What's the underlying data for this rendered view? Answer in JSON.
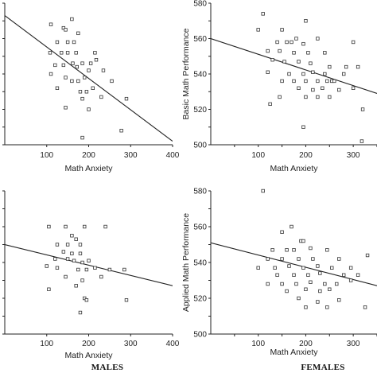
{
  "group_labels": {
    "males": "MALES",
    "females": "FEMALES"
  },
  "chart_data": [
    {
      "type": "scatter",
      "position": "top-left",
      "xlabel": "Math Anxiety",
      "ylabel": "",
      "xlim": [
        0,
        400
      ],
      "ylim": [
        500,
        580
      ],
      "xticks": [
        100,
        200,
        300,
        400
      ],
      "yticks": [],
      "fit_line": {
        "x": [
          0,
          400
        ],
        "y": [
          573,
          502
        ]
      },
      "points": [
        {
          "x": 110,
          "y": 568
        },
        {
          "x": 140,
          "y": 566
        },
        {
          "x": 145,
          "y": 565
        },
        {
          "x": 160,
          "y": 571
        },
        {
          "x": 175,
          "y": 563
        },
        {
          "x": 125,
          "y": 558
        },
        {
          "x": 150,
          "y": 558
        },
        {
          "x": 165,
          "y": 558
        },
        {
          "x": 108,
          "y": 552
        },
        {
          "x": 135,
          "y": 552
        },
        {
          "x": 150,
          "y": 552
        },
        {
          "x": 170,
          "y": 552
        },
        {
          "x": 120,
          "y": 545
        },
        {
          "x": 140,
          "y": 545
        },
        {
          "x": 162,
          "y": 546
        },
        {
          "x": 172,
          "y": 544
        },
        {
          "x": 185,
          "y": 546
        },
        {
          "x": 205,
          "y": 546
        },
        {
          "x": 215,
          "y": 552
        },
        {
          "x": 218,
          "y": 548
        },
        {
          "x": 110,
          "y": 540
        },
        {
          "x": 145,
          "y": 538
        },
        {
          "x": 160,
          "y": 536
        },
        {
          "x": 175,
          "y": 536
        },
        {
          "x": 190,
          "y": 538
        },
        {
          "x": 200,
          "y": 542
        },
        {
          "x": 235,
          "y": 542
        },
        {
          "x": 255,
          "y": 536
        },
        {
          "x": 125,
          "y": 532
        },
        {
          "x": 180,
          "y": 530
        },
        {
          "x": 195,
          "y": 530
        },
        {
          "x": 210,
          "y": 532
        },
        {
          "x": 185,
          "y": 526
        },
        {
          "x": 230,
          "y": 527
        },
        {
          "x": 145,
          "y": 521
        },
        {
          "x": 200,
          "y": 520
        },
        {
          "x": 290,
          "y": 526
        },
        {
          "x": 185,
          "y": 504
        },
        {
          "x": 278,
          "y": 508
        }
      ]
    },
    {
      "type": "scatter",
      "position": "top-right",
      "xlabel": "Math Anxiety",
      "ylabel": "Basic Math Performance",
      "xlim": [
        0,
        350
      ],
      "ylim": [
        500,
        580
      ],
      "xticks": [
        100,
        200,
        300
      ],
      "yticks": [
        500,
        520,
        540,
        560,
        580
      ],
      "fit_line": {
        "x": [
          0,
          350
        ],
        "y": [
          560,
          529
        ]
      },
      "points": [
        {
          "x": 110,
          "y": 574
        },
        {
          "x": 100,
          "y": 565
        },
        {
          "x": 150,
          "y": 565
        },
        {
          "x": 200,
          "y": 570
        },
        {
          "x": 180,
          "y": 560
        },
        {
          "x": 225,
          "y": 560
        },
        {
          "x": 140,
          "y": 558
        },
        {
          "x": 160,
          "y": 558
        },
        {
          "x": 170,
          "y": 558
        },
        {
          "x": 195,
          "y": 557
        },
        {
          "x": 300,
          "y": 558
        },
        {
          "x": 120,
          "y": 553
        },
        {
          "x": 145,
          "y": 553
        },
        {
          "x": 175,
          "y": 552
        },
        {
          "x": 205,
          "y": 552
        },
        {
          "x": 240,
          "y": 552
        },
        {
          "x": 130,
          "y": 548
        },
        {
          "x": 155,
          "y": 547
        },
        {
          "x": 185,
          "y": 547
        },
        {
          "x": 210,
          "y": 546
        },
        {
          "x": 250,
          "y": 544
        },
        {
          "x": 285,
          "y": 544
        },
        {
          "x": 310,
          "y": 544
        },
        {
          "x": 120,
          "y": 541
        },
        {
          "x": 165,
          "y": 540
        },
        {
          "x": 195,
          "y": 540
        },
        {
          "x": 215,
          "y": 541
        },
        {
          "x": 240,
          "y": 540
        },
        {
          "x": 280,
          "y": 540
        },
        {
          "x": 150,
          "y": 536
        },
        {
          "x": 175,
          "y": 536
        },
        {
          "x": 200,
          "y": 536
        },
        {
          "x": 225,
          "y": 536
        },
        {
          "x": 245,
          "y": 536
        },
        {
          "x": 255,
          "y": 536
        },
        {
          "x": 260,
          "y": 536
        },
        {
          "x": 185,
          "y": 532
        },
        {
          "x": 215,
          "y": 531
        },
        {
          "x": 235,
          "y": 532
        },
        {
          "x": 270,
          "y": 531
        },
        {
          "x": 300,
          "y": 532
        },
        {
          "x": 145,
          "y": 527
        },
        {
          "x": 200,
          "y": 527
        },
        {
          "x": 225,
          "y": 527
        },
        {
          "x": 250,
          "y": 527
        },
        {
          "x": 125,
          "y": 523
        },
        {
          "x": 195,
          "y": 510
        },
        {
          "x": 320,
          "y": 520
        },
        {
          "x": 318,
          "y": 502
        }
      ]
    },
    {
      "type": "scatter",
      "position": "bottom-left",
      "xlabel": "Math Anxiety",
      "ylabel": "",
      "xlim": [
        0,
        400
      ],
      "ylim": [
        500,
        580
      ],
      "xticks": [
        100,
        200,
        300,
        400
      ],
      "yticks": [],
      "fit_line": {
        "x": [
          0,
          400
        ],
        "y": [
          550,
          527
        ]
      },
      "points": [
        {
          "x": 105,
          "y": 560
        },
        {
          "x": 145,
          "y": 560
        },
        {
          "x": 190,
          "y": 560
        },
        {
          "x": 240,
          "y": 560
        },
        {
          "x": 160,
          "y": 555
        },
        {
          "x": 170,
          "y": 553
        },
        {
          "x": 125,
          "y": 550
        },
        {
          "x": 150,
          "y": 550
        },
        {
          "x": 180,
          "y": 550
        },
        {
          "x": 140,
          "y": 546
        },
        {
          "x": 160,
          "y": 545
        },
        {
          "x": 180,
          "y": 545
        },
        {
          "x": 120,
          "y": 542
        },
        {
          "x": 150,
          "y": 542
        },
        {
          "x": 165,
          "y": 541
        },
        {
          "x": 185,
          "y": 540
        },
        {
          "x": 200,
          "y": 541
        },
        {
          "x": 100,
          "y": 538
        },
        {
          "x": 125,
          "y": 537
        },
        {
          "x": 175,
          "y": 536
        },
        {
          "x": 195,
          "y": 536
        },
        {
          "x": 215,
          "y": 537
        },
        {
          "x": 250,
          "y": 536
        },
        {
          "x": 285,
          "y": 536
        },
        {
          "x": 145,
          "y": 532
        },
        {
          "x": 185,
          "y": 530
        },
        {
          "x": 230,
          "y": 532
        },
        {
          "x": 170,
          "y": 527
        },
        {
          "x": 105,
          "y": 525
        },
        {
          "x": 190,
          "y": 520
        },
        {
          "x": 195,
          "y": 519
        },
        {
          "x": 290,
          "y": 519
        },
        {
          "x": 180,
          "y": 512
        }
      ]
    },
    {
      "type": "scatter",
      "position": "bottom-right",
      "xlabel": "Math Anxiety",
      "ylabel": "Applied Math Performance",
      "xlim": [
        0,
        350
      ],
      "ylim": [
        500,
        580
      ],
      "xticks": [
        100,
        200,
        300
      ],
      "yticks": [
        500,
        520,
        540,
        560,
        580
      ],
      "fit_line": {
        "x": [
          0,
          350
        ],
        "y": [
          551,
          527
        ]
      },
      "points": [
        {
          "x": 110,
          "y": 580
        },
        {
          "x": 170,
          "y": 560
        },
        {
          "x": 150,
          "y": 557
        },
        {
          "x": 190,
          "y": 552
        },
        {
          "x": 195,
          "y": 552
        },
        {
          "x": 130,
          "y": 547
        },
        {
          "x": 160,
          "y": 547
        },
        {
          "x": 175,
          "y": 547
        },
        {
          "x": 210,
          "y": 548
        },
        {
          "x": 245,
          "y": 547
        },
        {
          "x": 120,
          "y": 542
        },
        {
          "x": 150,
          "y": 542
        },
        {
          "x": 185,
          "y": 542
        },
        {
          "x": 215,
          "y": 542
        },
        {
          "x": 270,
          "y": 542
        },
        {
          "x": 330,
          "y": 544
        },
        {
          "x": 100,
          "y": 537
        },
        {
          "x": 135,
          "y": 537
        },
        {
          "x": 165,
          "y": 538
        },
        {
          "x": 195,
          "y": 537
        },
        {
          "x": 225,
          "y": 538
        },
        {
          "x": 255,
          "y": 537
        },
        {
          "x": 295,
          "y": 537
        },
        {
          "x": 140,
          "y": 533
        },
        {
          "x": 175,
          "y": 533
        },
        {
          "x": 205,
          "y": 533
        },
        {
          "x": 230,
          "y": 534
        },
        {
          "x": 280,
          "y": 533
        },
        {
          "x": 310,
          "y": 533
        },
        {
          "x": 120,
          "y": 528
        },
        {
          "x": 150,
          "y": 528
        },
        {
          "x": 180,
          "y": 528
        },
        {
          "x": 210,
          "y": 529
        },
        {
          "x": 240,
          "y": 528
        },
        {
          "x": 265,
          "y": 528
        },
        {
          "x": 295,
          "y": 530
        },
        {
          "x": 160,
          "y": 524
        },
        {
          "x": 200,
          "y": 525
        },
        {
          "x": 230,
          "y": 524
        },
        {
          "x": 250,
          "y": 525
        },
        {
          "x": 185,
          "y": 520
        },
        {
          "x": 225,
          "y": 518
        },
        {
          "x": 270,
          "y": 519
        },
        {
          "x": 200,
          "y": 515
        },
        {
          "x": 245,
          "y": 515
        },
        {
          "x": 325,
          "y": 515
        }
      ]
    }
  ]
}
